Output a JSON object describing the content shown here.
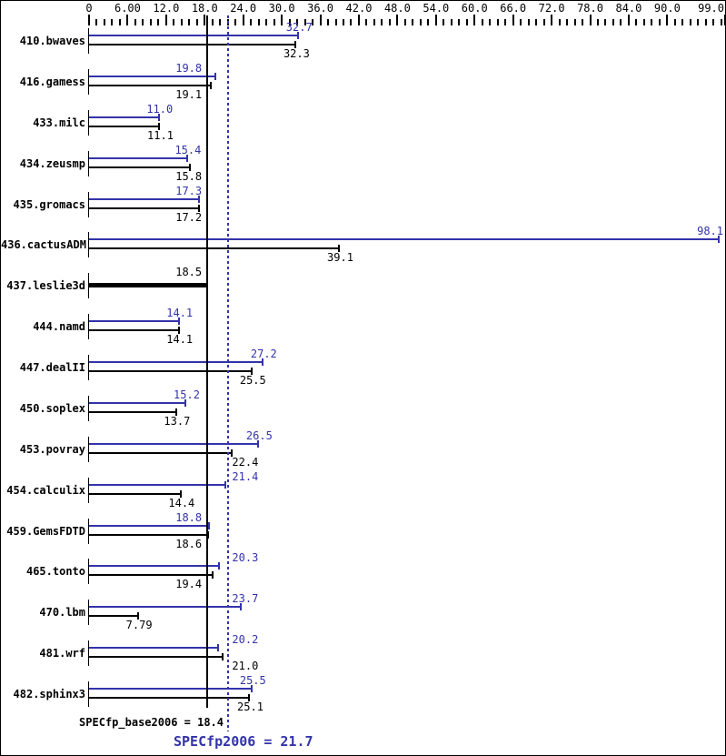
{
  "chart_data": {
    "type": "bar",
    "orientation": "horizontal",
    "title": "",
    "xlabel": "",
    "ylabel": "",
    "xlim": [
      0,
      99
    ],
    "grid": false,
    "legend_position": "none",
    "colors": {
      "peak": "#3333aa",
      "base": "#000000",
      "background": "#ffffff",
      "border": "#000000"
    },
    "x_axis": {
      "major_tick_values": [
        0,
        6,
        12,
        18,
        24,
        30,
        36,
        42,
        48,
        54,
        60,
        66,
        72,
        78,
        84,
        90,
        99
      ],
      "major_tick_labels": [
        "0",
        "6.00",
        "12.0",
        "18.0",
        "24.0",
        "30.0",
        "36.0",
        "42.0",
        "48.0",
        "54.0",
        "60.0",
        "66.0",
        "72.0",
        "78.0",
        "84.0",
        "90.0",
        "99.0"
      ],
      "minor_tick_step": 1.2
    },
    "categories": [
      "410.bwaves",
      "416.gamess",
      "433.milc",
      "434.zeusmp",
      "435.gromacs",
      "436.cactusADM",
      "437.leslie3d",
      "444.namd",
      "447.dealII",
      "450.soplex",
      "453.povray",
      "454.calculix",
      "459.GemsFDTD",
      "465.tonto",
      "470.lbm",
      "481.wrf",
      "482.sphinx3"
    ],
    "series": [
      {
        "name": "peak",
        "color": "#3333aa",
        "values": [
          32.7,
          19.8,
          11.0,
          15.4,
          17.3,
          98.1,
          null,
          14.1,
          27.2,
          15.2,
          26.5,
          21.4,
          18.8,
          20.3,
          23.7,
          20.2,
          25.5
        ]
      },
      {
        "name": "base",
        "color": "#000000",
        "values": [
          32.3,
          19.1,
          11.1,
          15.8,
          17.2,
          39.1,
          18.5,
          14.1,
          25.5,
          13.7,
          22.4,
          14.4,
          18.6,
          19.4,
          7.79,
          21.0,
          25.1
        ]
      }
    ],
    "benchmarks": [
      {
        "name": "410.bwaves",
        "peak": 32.7,
        "base": 32.3,
        "peak_label": "32.7",
        "base_label": "32.3",
        "single_thick_bar": false
      },
      {
        "name": "416.gamess",
        "peak": 19.8,
        "base": 19.1,
        "peak_label": "19.8",
        "base_label": "19.1",
        "single_thick_bar": false
      },
      {
        "name": "433.milc",
        "peak": 11.0,
        "base": 11.1,
        "peak_label": "11.0",
        "base_label": "11.1",
        "single_thick_bar": false
      },
      {
        "name": "434.zeusmp",
        "peak": 15.4,
        "base": 15.8,
        "peak_label": "15.4",
        "base_label": "15.8",
        "single_thick_bar": false
      },
      {
        "name": "435.gromacs",
        "peak": 17.3,
        "base": 17.2,
        "peak_label": "17.3",
        "base_label": "17.2",
        "single_thick_bar": false
      },
      {
        "name": "436.cactusADM",
        "peak": 98.1,
        "base": 39.1,
        "peak_label": "98.1",
        "base_label": "39.1",
        "single_thick_bar": false
      },
      {
        "name": "437.leslie3d",
        "peak": null,
        "base": 18.5,
        "peak_label": null,
        "base_label": "18.5",
        "single_thick_bar": true
      },
      {
        "name": "444.namd",
        "peak": 14.1,
        "base": 14.1,
        "peak_label": "14.1",
        "base_label": "14.1",
        "single_thick_bar": false
      },
      {
        "name": "447.dealII",
        "peak": 27.2,
        "base": 25.5,
        "peak_label": "27.2",
        "base_label": "25.5",
        "single_thick_bar": false
      },
      {
        "name": "450.soplex",
        "peak": 15.2,
        "base": 13.7,
        "peak_label": "15.2",
        "base_label": "13.7",
        "single_thick_bar": false
      },
      {
        "name": "453.povray",
        "peak": 26.5,
        "base": 22.4,
        "peak_label": "26.5",
        "base_label": "22.4",
        "single_thick_bar": false
      },
      {
        "name": "454.calculix",
        "peak": 21.4,
        "base": 14.4,
        "peak_label": "21.4",
        "base_label": "14.4",
        "single_thick_bar": false
      },
      {
        "name": "459.GemsFDTD",
        "peak": 18.8,
        "base": 18.6,
        "peak_label": "18.8",
        "base_label": "18.6",
        "single_thick_bar": false
      },
      {
        "name": "465.tonto",
        "peak": 20.3,
        "base": 19.4,
        "peak_label": "20.3",
        "base_label": "19.4",
        "single_thick_bar": false
      },
      {
        "name": "470.lbm",
        "peak": 23.7,
        "base": 7.79,
        "peak_label": "23.7",
        "base_label": "7.79",
        "single_thick_bar": false
      },
      {
        "name": "481.wrf",
        "peak": 20.2,
        "base": 21.0,
        "peak_label": "20.2",
        "base_label": "21.0",
        "single_thick_bar": false
      },
      {
        "name": "482.sphinx3",
        "peak": 25.5,
        "base": 25.1,
        "peak_label": "25.5",
        "base_label": "25.1",
        "single_thick_bar": false
      }
    ],
    "reference_lines": [
      {
        "label": "SPECfp_base2006 = 18.4",
        "value": 18.4,
        "style": "solid",
        "color": "#000000"
      },
      {
        "label": "SPECfp2006 = 21.7",
        "value": 21.7,
        "style": "dotted",
        "color": "#3333aa"
      }
    ]
  }
}
